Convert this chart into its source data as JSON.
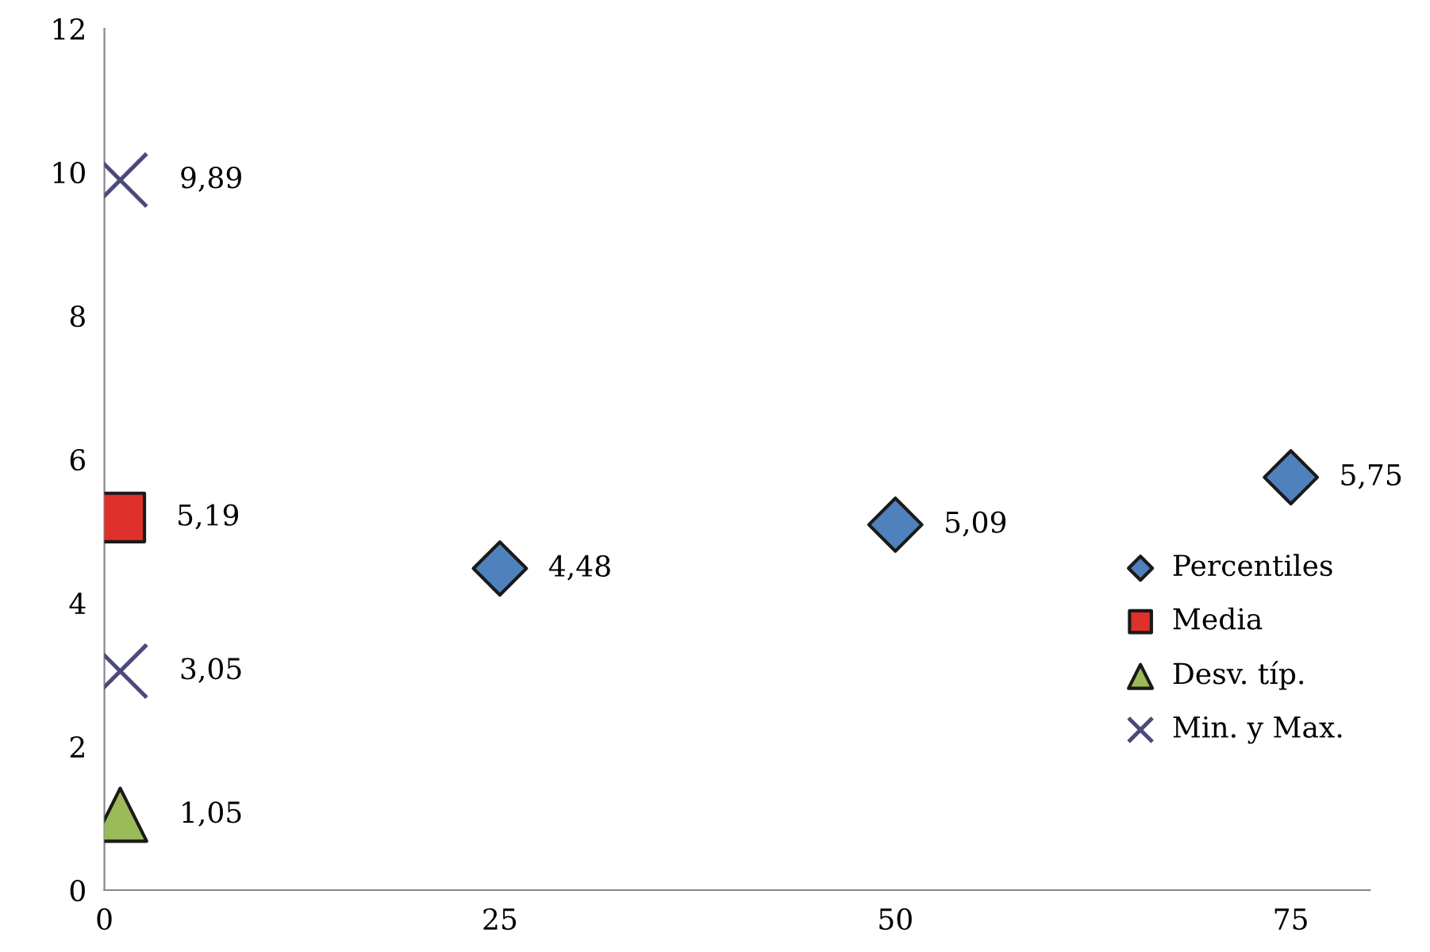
{
  "chart_data": {
    "type": "scatter",
    "xlim": [
      0,
      80
    ],
    "xticks": [
      0,
      25,
      50,
      75
    ],
    "ylim": [
      0,
      12
    ],
    "yticks": [
      0,
      2,
      4,
      6,
      8,
      10,
      12
    ],
    "grid": false,
    "legend": "right",
    "series": [
      {
        "name": "Percentiles",
        "color": "#4f81bd",
        "marker": "diamond",
        "x": [
          25,
          50,
          75
        ],
        "values": [
          4.48,
          5.09,
          5.75
        ],
        "value_labels": [
          "4,48",
          "5,09",
          "5,75"
        ]
      },
      {
        "name": "Media",
        "color": "#e0302c",
        "marker": "square",
        "x": [
          1
        ],
        "values": [
          5.19
        ],
        "value_labels": [
          "5,19"
        ]
      },
      {
        "name": "Desv. típ.",
        "color": "#9bbb59",
        "marker": "triangle",
        "x": [
          1
        ],
        "values": [
          1.05
        ],
        "value_labels": [
          "1,05"
        ]
      },
      {
        "name": "Min. y Max.",
        "color": "#4b4a7a",
        "marker": "cross",
        "x": [
          1,
          1
        ],
        "values": [
          9.89,
          3.05
        ],
        "value_labels": [
          "9,89",
          "3,05"
        ]
      }
    ]
  }
}
